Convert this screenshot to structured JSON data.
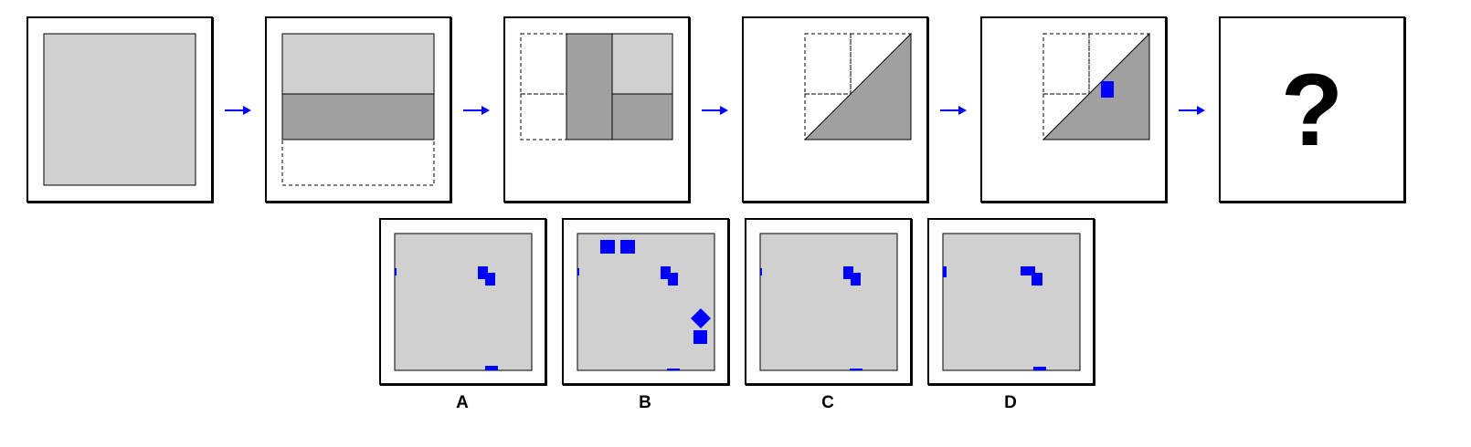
{
  "colors": {
    "light_gray": "#d0d0d0",
    "dark_gray": "#a0a0a0",
    "blue": "#0000ff",
    "border": "#000000"
  },
  "sequence": {
    "question_mark": "?",
    "arrow_icon": "right-arrow-icon"
  },
  "options": [
    {
      "label": "A"
    },
    {
      "label": "B"
    },
    {
      "label": "C"
    },
    {
      "label": "D"
    }
  ]
}
